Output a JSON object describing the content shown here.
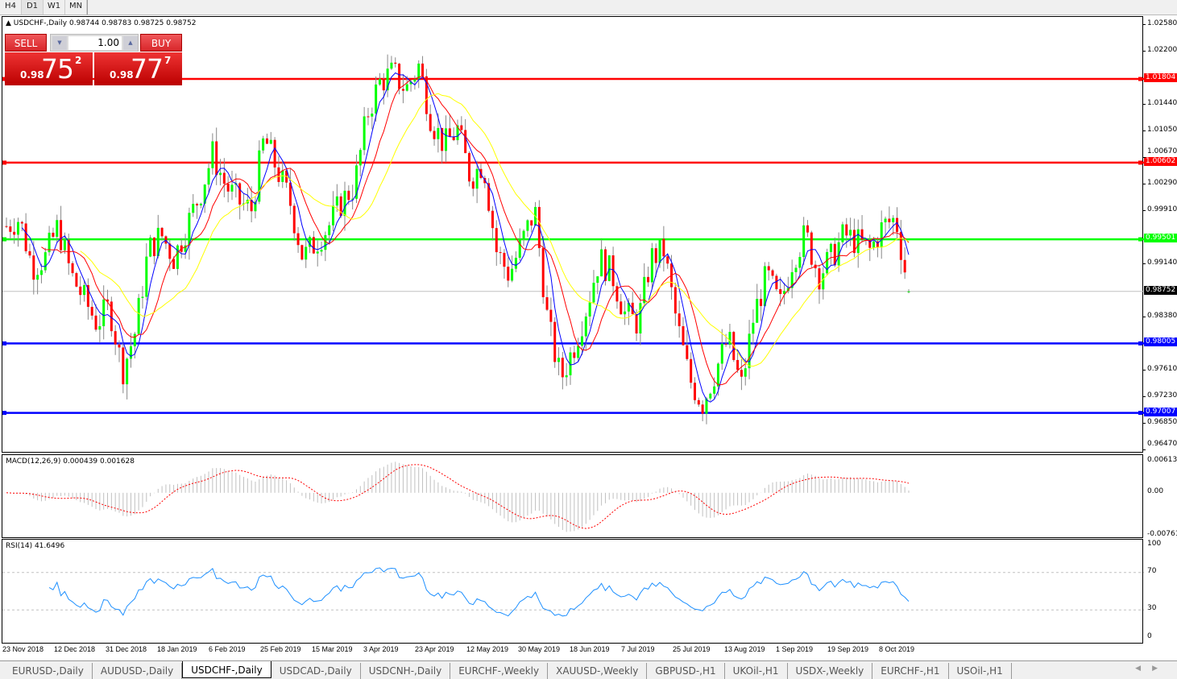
{
  "timeframes": [
    {
      "label": "H4",
      "active": false
    },
    {
      "label": "D1",
      "active": true
    },
    {
      "label": "W1",
      "active": false
    },
    {
      "label": "MN",
      "active": false
    }
  ],
  "chart": {
    "title": "USDCHF-,Daily",
    "ohlc": "0.98744 0.98783 0.98725 0.98752"
  },
  "trade_panel": {
    "sell_label": "SELL",
    "buy_label": "BUY",
    "lot": "1.00",
    "sell": {
      "prefix": "0.98",
      "big": "75",
      "sup": "2"
    },
    "buy": {
      "prefix": "0.98",
      "big": "77",
      "sup": "7"
    }
  },
  "colors": {
    "bull": "#00ff00",
    "bear": "#ff0000",
    "ma_fast": "#0000ff",
    "ma_mid": "#ff0000",
    "ma_slow": "#ffff00",
    "macd_hist": "#c0c0c0",
    "macd_signal": "#ff0000",
    "rsi": "#1e90ff"
  },
  "chart_data": {
    "type": "candlestick",
    "ylim": [
      0.9647,
      1.0258
    ],
    "price_ticks": [
      "1.02580",
      "1.02200",
      "1.01440",
      "1.01050",
      "1.00670",
      "1.00290",
      "0.99910",
      "0.99140",
      "0.98380",
      "0.97610",
      "0.97230",
      "0.96850",
      "0.96470"
    ],
    "closes": [
      0.9969,
      0.998,
      0.9911,
      0.9923,
      0.9969,
      0.9899,
      0.9865,
      0.983,
      0.9853,
      0.9761,
      0.9818,
      0.9934,
      0.9957,
      0.9923,
      0.9969,
      1.0015,
      1.0073,
      1.0027,
      1.0004,
      0.9992,
      1.0096,
      1.005,
      1.0004,
      0.9923,
      0.9946,
      0.9969,
      1.0004,
      1.0027,
      1.0131,
      1.0177,
      1.0189,
      1.0165,
      1.02,
      1.0119,
      1.0085,
      1.0108,
      1.0038,
      1.0061,
      0.9934,
      0.9899,
      0.9946,
      0.9992,
      0.983,
      0.9749,
      0.9795,
      0.9853,
      0.9923,
      0.9899,
      0.9842,
      0.983,
      0.9923,
      0.9934,
      0.983,
      0.9749,
      0.9714,
      0.9761,
      0.9807,
      0.9737,
      0.9842,
      0.9899,
      0.9853,
      0.9923,
      0.9957,
      0.9899,
      0.9923,
      0.9957,
      0.9946,
      0.9934,
      0.9969,
      0.998,
      0.98752
    ],
    "hlines": [
      {
        "price": "1.01804",
        "color": "#ff0000"
      },
      {
        "price": "1.00602",
        "color": "#ff0000"
      },
      {
        "price": "0.99501",
        "color": "#00ff00"
      },
      {
        "price": "0.98005",
        "color": "#0000ff"
      },
      {
        "price": "0.97007",
        "color": "#0000ff"
      }
    ],
    "current_price": "0.98752",
    "x_labels": [
      "23 Nov 2018",
      "12 Dec 2018",
      "31 Dec 2018",
      "18 Jan 2019",
      "6 Feb 2019",
      "25 Feb 2019",
      "15 Mar 2019",
      "3 Apr 2019",
      "23 Apr 2019",
      "12 May 2019",
      "30 May 2019",
      "18 Jun 2019",
      "7 Jul 2019",
      "25 Jul 2019",
      "13 Aug 2019",
      "1 Sep 2019",
      "19 Sep 2019",
      "8 Oct 2019"
    ],
    "macd": {
      "title": "MACD(12,26,9) 0.000439 0.001628",
      "ticks": [
        "0.00613",
        "0.00",
        "-0.007612"
      ],
      "ylim": [
        -0.007612,
        0.00613
      ]
    },
    "rsi": {
      "title": "RSI(14) 41.6496",
      "ticks": [
        "100",
        "70",
        "30",
        "0"
      ],
      "levels": [
        70,
        30
      ]
    }
  },
  "tabs": [
    {
      "label": "EURUSD-,Daily"
    },
    {
      "label": "AUDUSD-,Daily"
    },
    {
      "label": "USDCHF-,Daily",
      "active": true
    },
    {
      "label": "USDCAD-,Daily"
    },
    {
      "label": "USDCNH-,Daily"
    },
    {
      "label": "EURCHF-,Weekly"
    },
    {
      "label": "XAUUSD-,Weekly"
    },
    {
      "label": "GBPUSD-,H1"
    },
    {
      "label": "UKOil-,H1"
    },
    {
      "label": "USDX-,Weekly"
    },
    {
      "label": "EURCHF-,H1"
    },
    {
      "label": "USOil-,H1"
    }
  ]
}
